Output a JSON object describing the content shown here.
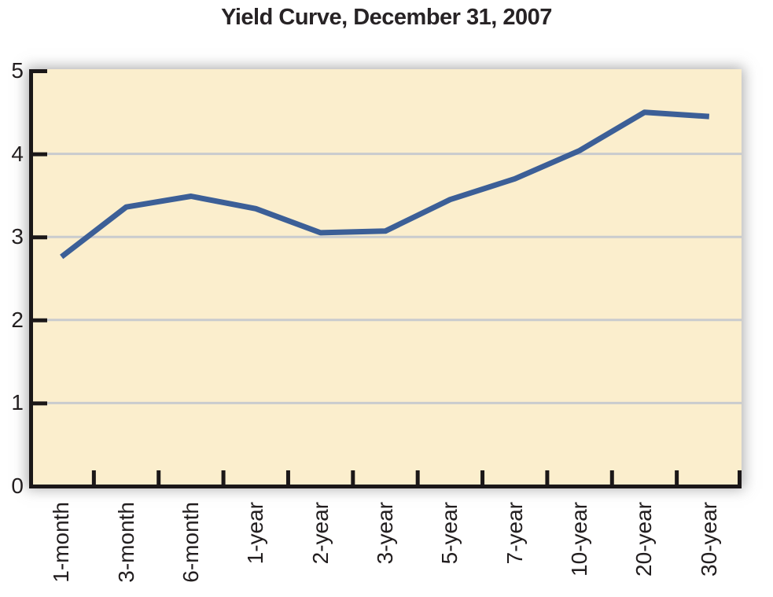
{
  "page": {
    "background": "#ffffff"
  },
  "chart_data": {
    "type": "line",
    "title": "Yield Curve, December 31, 2007",
    "categories": [
      "1-month",
      "3-month",
      "6-month",
      "1-year",
      "2-year",
      "3-year",
      "5-year",
      "7-year",
      "10-year",
      "20-year",
      "30-year"
    ],
    "series": [
      {
        "name": "yield-percent",
        "values": [
          2.76,
          3.36,
          3.49,
          3.34,
          3.05,
          3.07,
          3.45,
          3.7,
          4.04,
          4.5,
          4.45
        ]
      }
    ],
    "xlabel": "",
    "ylabel": "",
    "ylim": [
      0,
      5
    ],
    "yticks": [
      "0",
      "1",
      "2",
      "3",
      "4",
      "5"
    ],
    "gridlines": "horizontal",
    "grid_values": [
      1,
      2,
      3,
      4
    ],
    "legend": "none",
    "styles": {
      "line_color": "#3C5F97",
      "plot_background": "#FBEECD",
      "grid_color": "#C9CBCE",
      "axis_color": "#1B1718",
      "text_color": "#221E1F",
      "title_color": "#272325"
    }
  }
}
